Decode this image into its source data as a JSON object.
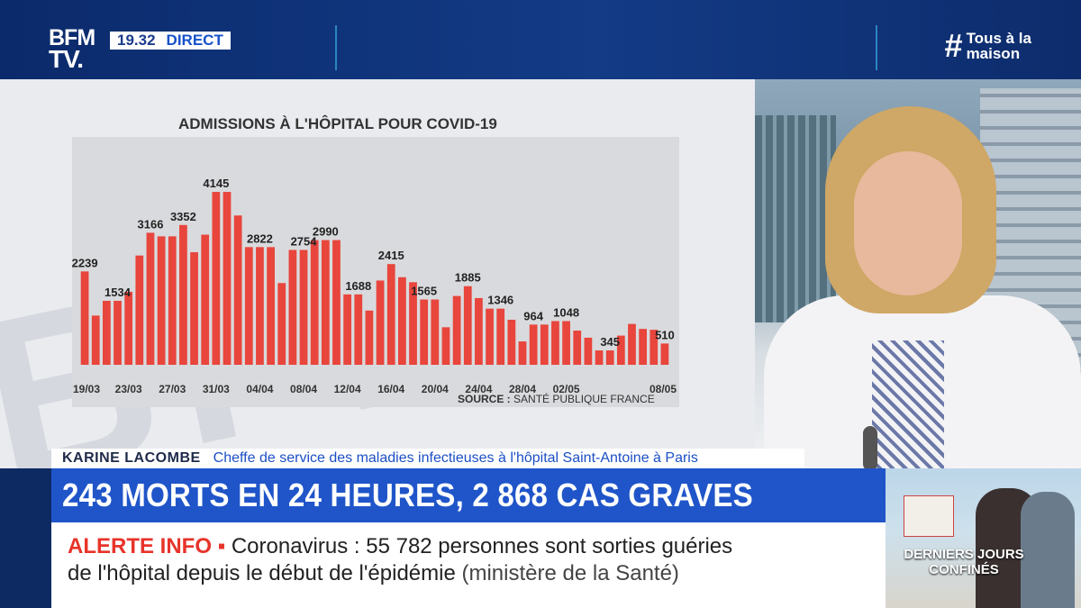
{
  "header": {
    "logo_line1": "BFM",
    "logo_line2": "TV.",
    "time": "19.32",
    "live": "DIRECT",
    "hashtag_symbol": "#",
    "hashtag_line1": "Tous à la",
    "hashtag_line2": "maison"
  },
  "chart_data": {
    "type": "bar",
    "title": "ADMISSIONS À L'HÔPITAL POUR COVID-19",
    "source_label": "SOURCE :",
    "source_value": "SANTÉ PUBLIQUE FRANCE",
    "bar_color": "#e8453c",
    "ylim": [
      0,
      4600
    ],
    "values": [
      2239,
      1180,
      1534,
      1534,
      1750,
      2620,
      3166,
      3080,
      3080,
      3352,
      2700,
      3120,
      4145,
      4145,
      3580,
      2822,
      2822,
      2822,
      1960,
      2754,
      2754,
      2990,
      2990,
      2990,
      1688,
      1688,
      1300,
      2020,
      2415,
      2100,
      1980,
      1565,
      1565,
      900,
      1650,
      1885,
      1600,
      1346,
      1346,
      1080,
      560,
      964,
      964,
      1048,
      1048,
      820,
      650,
      345,
      345,
      700,
      980,
      860,
      840,
      510
    ],
    "value_labels": [
      {
        "index": 0,
        "text": "2239"
      },
      {
        "index": 3,
        "text": "1534"
      },
      {
        "index": 6,
        "text": "3166"
      },
      {
        "index": 9,
        "text": "3352"
      },
      {
        "index": 12,
        "text": "4145"
      },
      {
        "index": 16,
        "text": "2822"
      },
      {
        "index": 20,
        "text": "2754"
      },
      {
        "index": 22,
        "text": "2990"
      },
      {
        "index": 25,
        "text": "1688"
      },
      {
        "index": 28,
        "text": "2415"
      },
      {
        "index": 31,
        "text": "1565"
      },
      {
        "index": 35,
        "text": "1885"
      },
      {
        "index": 38,
        "text": "1346"
      },
      {
        "index": 41,
        "text": "964"
      },
      {
        "index": 44,
        "text": "1048"
      },
      {
        "index": 48,
        "text": "345"
      },
      {
        "index": 53,
        "text": "510"
      }
    ],
    "x_ticks": [
      {
        "index": 0,
        "text": "19/03"
      },
      {
        "index": 4,
        "text": "23/03"
      },
      {
        "index": 8,
        "text": "27/03"
      },
      {
        "index": 12,
        "text": "31/03"
      },
      {
        "index": 16,
        "text": "04/04"
      },
      {
        "index": 20,
        "text": "08/04"
      },
      {
        "index": 24,
        "text": "12/04"
      },
      {
        "index": 28,
        "text": "16/04"
      },
      {
        "index": 32,
        "text": "20/04"
      },
      {
        "index": 36,
        "text": "24/04"
      },
      {
        "index": 40,
        "text": "28/04"
      },
      {
        "index": 44,
        "text": "02/05"
      },
      {
        "index": 53,
        "text": "08/05"
      }
    ]
  },
  "guest": {
    "name": "KARINE LACOMBE",
    "role": "Cheffe de service des maladies infectieuses à l'hôpital Saint-Antoine à Paris"
  },
  "headline": "243 MORTS EN 24 HEURES, 2 868 CAS GRAVES",
  "alert": {
    "tag": "ALERTE INFO ▪",
    "text1": "Coronavirus : 55 782 personnes sont sorties guéries",
    "text2": "de l'hôpital depuis le début de l'épidémie",
    "source": "(ministère de la Santé)"
  },
  "thumbnail": {
    "label": "DERNIERS JOURS CONFINÉS"
  }
}
